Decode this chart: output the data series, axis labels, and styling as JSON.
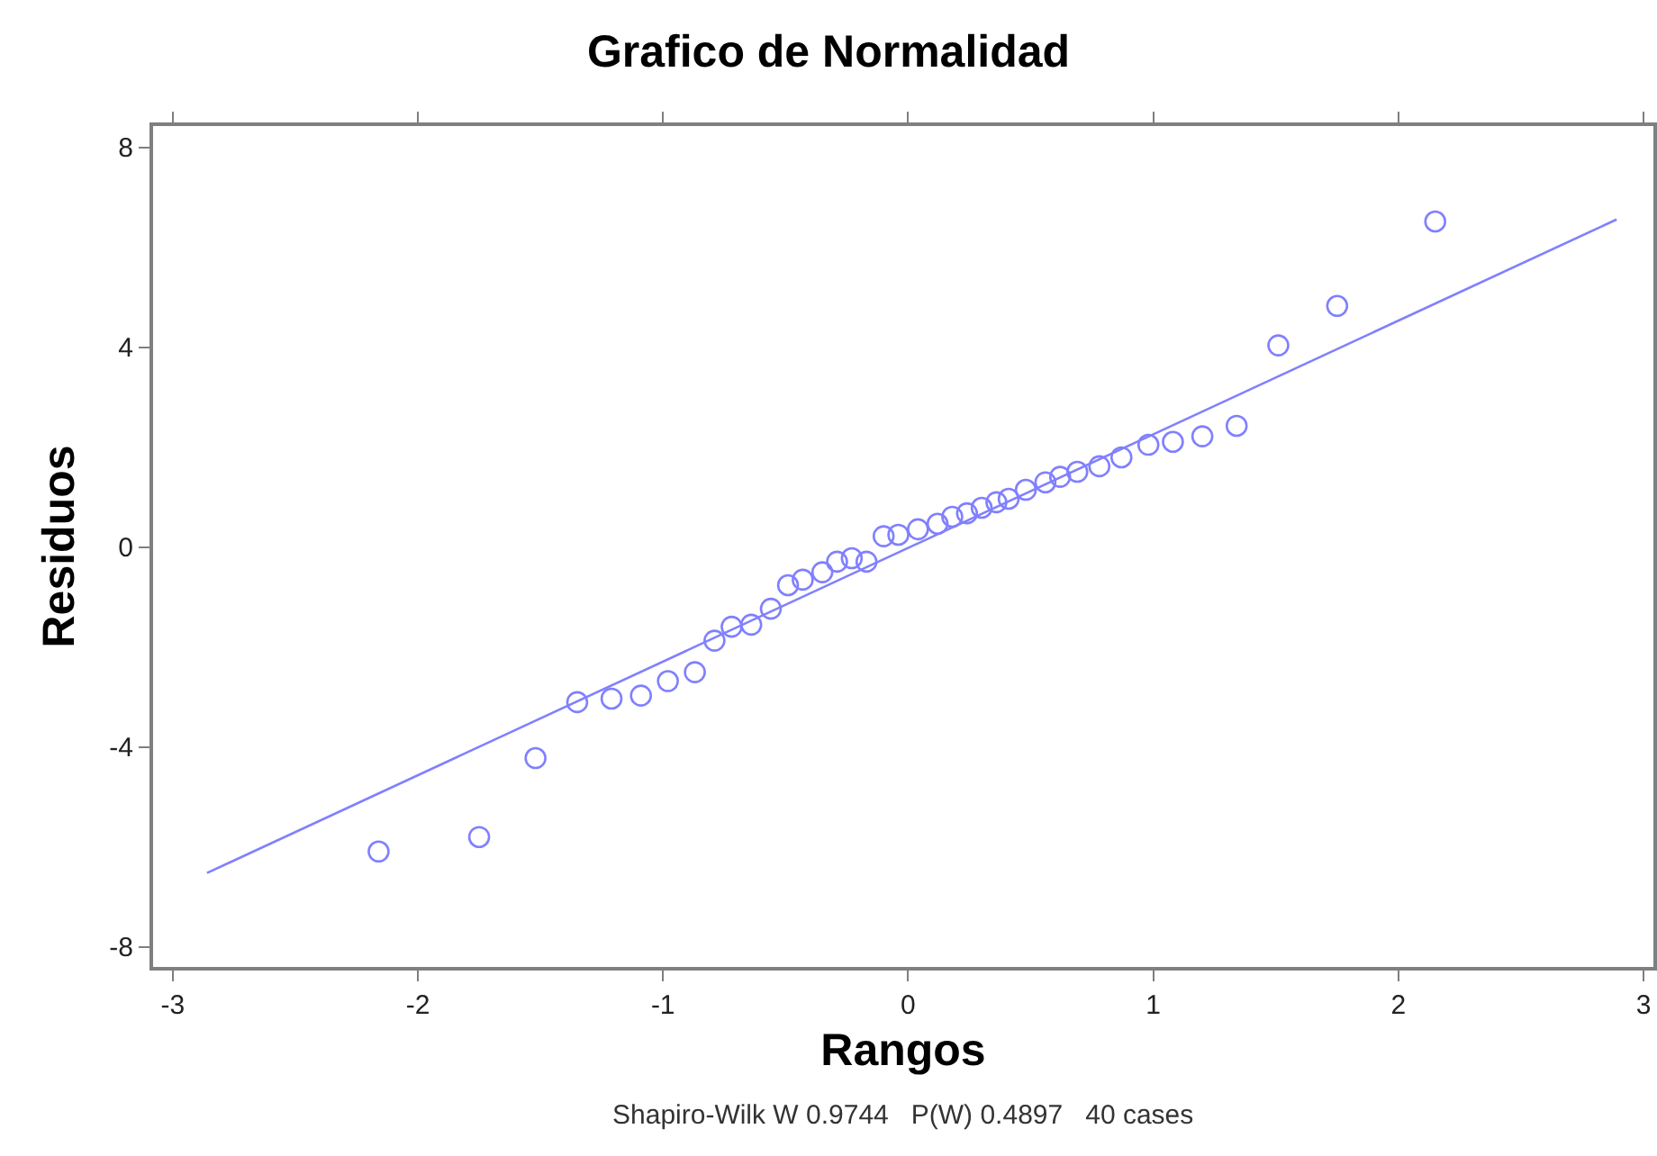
{
  "chart_data": {
    "type": "scatter",
    "title": "Grafico de Normalidad",
    "xlabel": "Rangos",
    "ylabel": "Residuos",
    "annotations": [
      "Shapiro-Wilk W 0.9744   P(W) 0.4897   40 cases"
    ],
    "x": [
      -2.16,
      -1.75,
      -1.52,
      -1.35,
      -1.21,
      -1.09,
      -0.98,
      -0.87,
      -0.79,
      -0.72,
      -0.64,
      -0.56,
      -0.49,
      -0.43,
      -0.35,
      -0.29,
      -0.23,
      -0.17,
      -0.1,
      -0.04,
      0.04,
      0.12,
      0.18,
      0.24,
      0.3,
      0.36,
      0.41,
      0.48,
      0.56,
      0.62,
      0.69,
      0.78,
      0.87,
      0.98,
      1.08,
      1.2,
      1.34,
      1.51,
      1.75,
      2.15
    ],
    "series": [
      {
        "color": "#8080ff",
        "marker": "circle",
        "values": [
          -6.09,
          -5.8,
          -4.22,
          -3.1,
          -3.03,
          -2.97,
          -2.68,
          -2.5,
          -1.87,
          -1.59,
          -1.55,
          -1.23,
          -0.76,
          -0.65,
          -0.5,
          -0.29,
          -0.22,
          -0.29,
          0.22,
          0.25,
          0.36,
          0.47,
          0.61,
          0.68,
          0.79,
          0.9,
          0.97,
          1.15,
          1.3,
          1.41,
          1.51,
          1.62,
          1.8,
          2.05,
          2.11,
          2.22,
          2.43,
          4.04,
          4.83,
          6.52
        ]
      },
      {
        "type": "line",
        "color": "#8080ff",
        "line_style": "solid",
        "marker": "none",
        "x": [
          -2.86,
          2.89
        ],
        "values": [
          -6.52,
          6.56
        ]
      }
    ],
    "xlim": [
      -3.08,
      3.04
    ],
    "xticks": [
      -3,
      -2,
      -1,
      0,
      1,
      2,
      3
    ],
    "ylim": [
      -8.4,
      8.43
    ],
    "yticks": [
      -8,
      -4,
      0,
      4,
      8
    ],
    "grid": false
  }
}
